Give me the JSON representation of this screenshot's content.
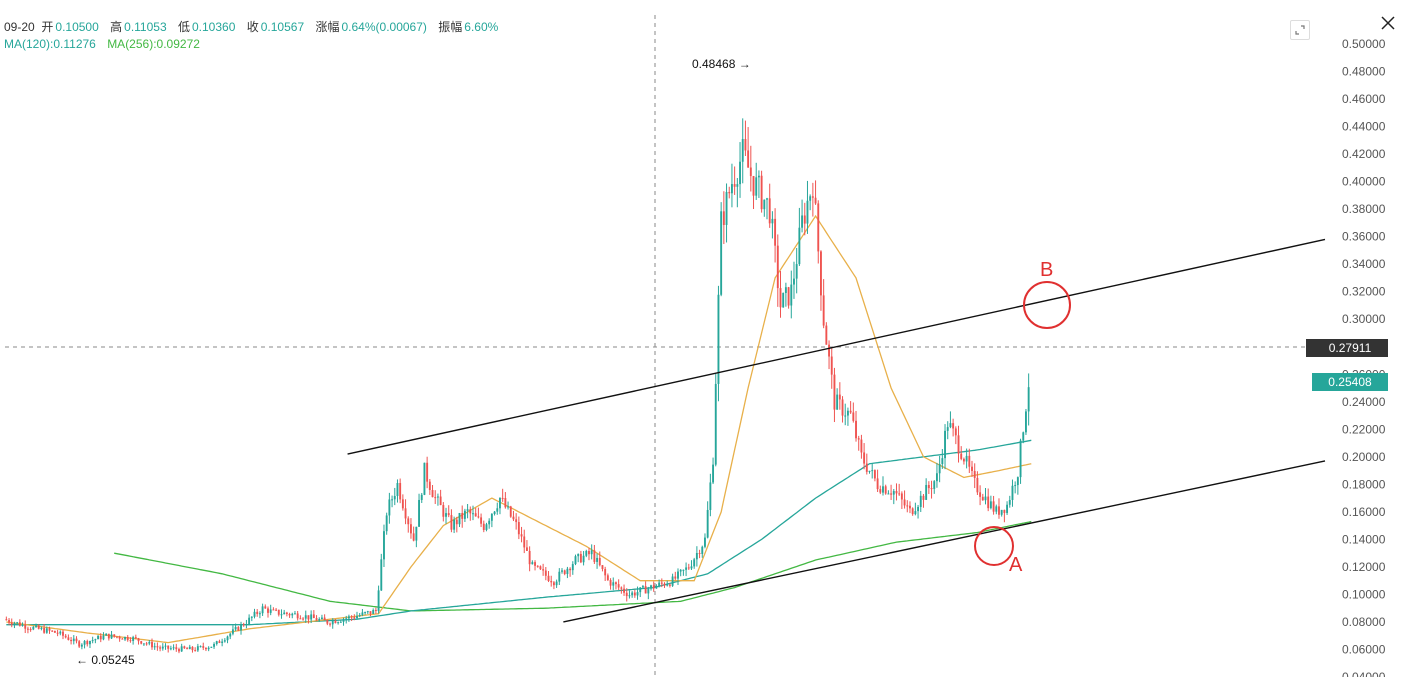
{
  "ohlc": {
    "date": "09-20",
    "open_label": "开",
    "open": "0.10500",
    "high_label": "高",
    "high": "0.11053",
    "low_label": "低",
    "low": "0.10360",
    "close_label": "收",
    "close": "0.10567",
    "change_label": "涨幅",
    "change": "0.64%(0.00067)",
    "amplitude_label": "振幅",
    "amplitude": "6.60%"
  },
  "moving_averages": {
    "ma120": "MA(120):0.11276",
    "ma256": "MA(256):0.09272"
  },
  "crosshair_price": "0.27911",
  "last_price": "0.25408",
  "annotations": {
    "high_marker": "0.48468 →",
    "low_marker": "← 0.05245",
    "point_a": "A",
    "point_b": "B"
  },
  "colors": {
    "up": "#26a69a",
    "down": "#ef5350",
    "ma_short": "#e8b04a",
    "ma120": "#26a69a",
    "ma256": "#43b843",
    "trendline": "#111111",
    "annotation": "#e03030"
  },
  "chart_data": {
    "type": "candlestick",
    "y_axis_ticks": [
      "0.50000",
      "0.48000",
      "0.46000",
      "0.44000",
      "0.42000",
      "0.40000",
      "0.38000",
      "0.36000",
      "0.34000",
      "0.32000",
      "0.30000",
      "0.28000",
      "0.26000",
      "0.24000",
      "0.22000",
      "0.20000",
      "0.18000",
      "0.16000",
      "0.14000",
      "0.12000",
      "0.10000",
      "0.08000",
      "0.06000",
      "0.04000"
    ],
    "ylim": [
      0.04,
      0.5
    ],
    "price_anchors": [
      [
        0,
        0.082
      ],
      [
        10,
        0.076
      ],
      [
        20,
        0.072
      ],
      [
        28,
        0.064
      ],
      [
        38,
        0.07
      ],
      [
        48,
        0.068
      ],
      [
        58,
        0.061
      ],
      [
        70,
        0.06
      ],
      [
        78,
        0.063
      ],
      [
        90,
        0.08
      ],
      [
        96,
        0.09
      ],
      [
        100,
        0.087
      ],
      [
        110,
        0.085
      ],
      [
        120,
        0.08
      ],
      [
        130,
        0.084
      ],
      [
        138,
        0.088
      ],
      [
        142,
        0.16
      ],
      [
        146,
        0.18
      ],
      [
        152,
        0.14
      ],
      [
        156,
        0.19
      ],
      [
        160,
        0.17
      ],
      [
        166,
        0.15
      ],
      [
        172,
        0.16
      ],
      [
        178,
        0.15
      ],
      [
        184,
        0.17
      ],
      [
        190,
        0.15
      ],
      [
        196,
        0.12
      ],
      [
        204,
        0.11
      ],
      [
        212,
        0.125
      ],
      [
        218,
        0.13
      ],
      [
        224,
        0.11
      ],
      [
        232,
        0.1
      ],
      [
        240,
        0.105
      ],
      [
        248,
        0.11
      ],
      [
        254,
        0.12
      ],
      [
        260,
        0.14
      ],
      [
        263,
        0.2
      ],
      [
        266,
        0.37
      ],
      [
        270,
        0.4
      ],
      [
        274,
        0.42
      ],
      [
        278,
        0.4
      ],
      [
        284,
        0.38
      ],
      [
        288,
        0.31
      ],
      [
        292,
        0.32
      ],
      [
        296,
        0.37
      ],
      [
        300,
        0.4
      ],
      [
        304,
        0.3
      ],
      [
        308,
        0.24
      ],
      [
        314,
        0.23
      ],
      [
        318,
        0.2
      ],
      [
        324,
        0.18
      ],
      [
        330,
        0.175
      ],
      [
        336,
        0.16
      ],
      [
        340,
        0.17
      ],
      [
        346,
        0.185
      ],
      [
        350,
        0.225
      ],
      [
        356,
        0.2
      ],
      [
        360,
        0.18
      ],
      [
        364,
        0.17
      ],
      [
        368,
        0.16
      ],
      [
        372,
        0.165
      ],
      [
        376,
        0.19
      ],
      [
        380,
        0.254
      ]
    ],
    "candles": 380,
    "ma_short_anchors": [
      [
        0,
        0.08
      ],
      [
        30,
        0.072
      ],
      [
        60,
        0.065
      ],
      [
        90,
        0.075
      ],
      [
        120,
        0.082
      ],
      [
        138,
        0.086
      ],
      [
        150,
        0.12
      ],
      [
        162,
        0.15
      ],
      [
        180,
        0.17
      ],
      [
        200,
        0.15
      ],
      [
        215,
        0.135
      ],
      [
        235,
        0.11
      ],
      [
        255,
        0.11
      ],
      [
        265,
        0.16
      ],
      [
        275,
        0.25
      ],
      [
        285,
        0.33
      ],
      [
        300,
        0.375
      ],
      [
        315,
        0.33
      ],
      [
        328,
        0.25
      ],
      [
        340,
        0.2
      ],
      [
        355,
        0.185
      ],
      [
        368,
        0.19
      ],
      [
        380,
        0.195
      ]
    ],
    "ma120_anchors": [
      [
        0,
        0.078
      ],
      [
        90,
        0.078
      ],
      [
        130,
        0.082
      ],
      [
        150,
        0.088
      ],
      [
        200,
        0.098
      ],
      [
        240,
        0.105
      ],
      [
        260,
        0.115
      ],
      [
        280,
        0.14
      ],
      [
        300,
        0.17
      ],
      [
        320,
        0.195
      ],
      [
        340,
        0.2
      ],
      [
        360,
        0.205
      ],
      [
        380,
        0.212
      ]
    ],
    "ma256_anchors": [
      [
        40,
        0.13
      ],
      [
        80,
        0.115
      ],
      [
        120,
        0.095
      ],
      [
        150,
        0.088
      ],
      [
        200,
        0.09
      ],
      [
        250,
        0.095
      ],
      [
        270,
        0.105
      ],
      [
        300,
        0.125
      ],
      [
        330,
        0.138
      ],
      [
        360,
        0.145
      ],
      [
        380,
        0.153
      ]
    ],
    "upper_trendline": [
      [
        127,
        0.202
      ],
      [
        380,
        0.358
      ]
    ],
    "lower_trendline": [
      [
        207,
        0.08
      ],
      [
        380,
        0.197
      ]
    ]
  }
}
